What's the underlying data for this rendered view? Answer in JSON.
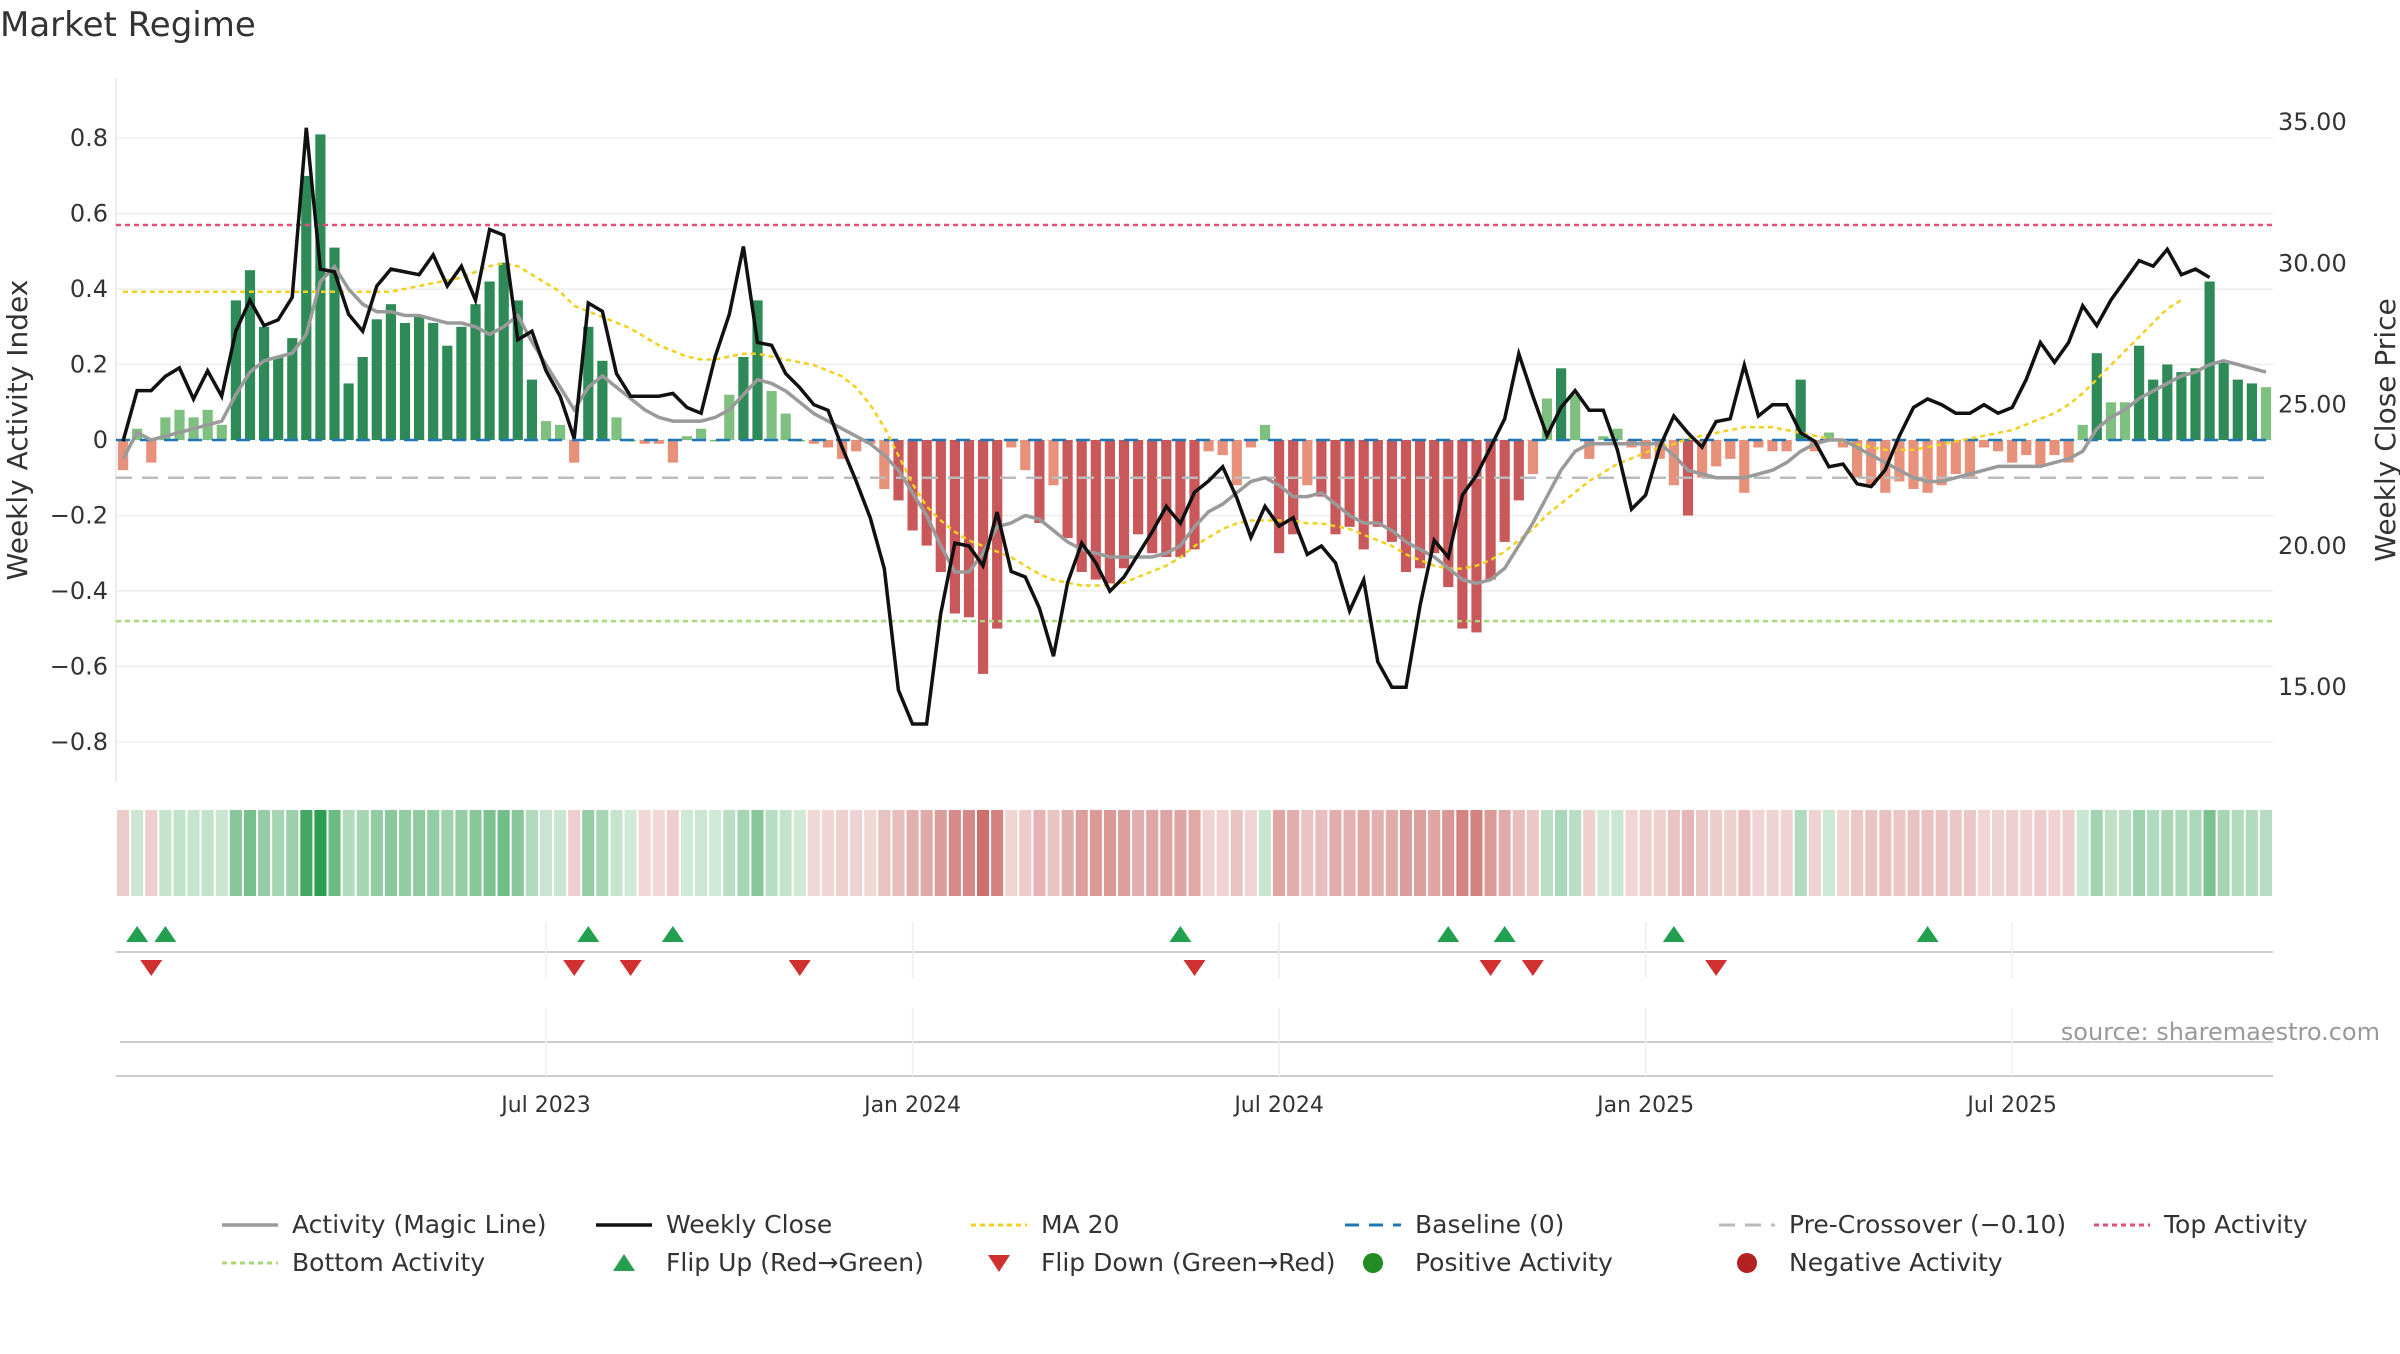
{
  "chart_data": {
    "type": "bar",
    "title": "Market Regime",
    "ylabel": "Weekly Activity Index",
    "y2label": "Weekly Close Price",
    "source": "source: sharemaestro.com",
    "ylim": [
      -0.88,
      0.88
    ],
    "y2lim": [
      12.0,
      35.5
    ],
    "y_ticks": [
      0.8,
      0.6,
      0.4,
      0.2,
      0,
      -0.2,
      -0.4,
      -0.6,
      -0.8
    ],
    "y_tick_labels": [
      "0.8",
      "0.6",
      "0.4",
      "0.2",
      "0",
      "−0.2",
      "−0.4",
      "−0.6",
      "−0.8"
    ],
    "y2_ticks": [
      35,
      30,
      25,
      20,
      15
    ],
    "y2_tick_labels": [
      "35.00",
      "30.00",
      "25.00",
      "20.00",
      "15.00"
    ],
    "x_ticks": [
      {
        "week": 30,
        "label": "Jul 2023"
      },
      {
        "week": 56,
        "label": "Jan 2024"
      },
      {
        "week": 82,
        "label": "Jul 2024"
      },
      {
        "week": 108,
        "label": "Jan 2025"
      },
      {
        "week": 134,
        "label": "Jul 2025"
      }
    ],
    "grid": true,
    "legend_position": "bottom",
    "reference_lines": {
      "baseline": 0,
      "pre_crossover": -0.1,
      "top_activity": 0.57,
      "bottom_activity": -0.48
    },
    "colors": {
      "pos_strong": "#2e8b57",
      "pos_light": "#7ec07f",
      "neg_strong": "#c8585a",
      "neg_light": "#e8917a",
      "close": "#111111",
      "magic": "#9a9a9a",
      "ma20": "#f0d020",
      "baseline": "#1f77b4",
      "pre_crossover": "#bbbbbb",
      "top": "#e0507a",
      "bottom": "#a8d878",
      "flip_up": "#22a050",
      "flip_down": "#d03030",
      "positive": "#228b22",
      "negative": "#b22222"
    },
    "activity": [
      -0.08,
      0.03,
      -0.06,
      0.06,
      0.08,
      0.06,
      0.08,
      0.04,
      0.37,
      0.45,
      0.3,
      0.22,
      0.27,
      0.7,
      0.81,
      0.51,
      0.15,
      0.22,
      0.32,
      0.36,
      0.31,
      0.33,
      0.31,
      0.25,
      0.3,
      0.36,
      0.42,
      0.47,
      0.37,
      0.16,
      0.05,
      0.04,
      -0.06,
      0.3,
      0.21,
      0.06,
      0.0,
      -0.01,
      -0.01,
      -0.06,
      0.01,
      0.03,
      0.0,
      0.12,
      0.22,
      0.37,
      0.13,
      0.07,
      0.0,
      -0.01,
      -0.02,
      -0.05,
      -0.03,
      -0.01,
      -0.13,
      -0.16,
      -0.24,
      -0.28,
      -0.35,
      -0.46,
      -0.47,
      -0.62,
      -0.5,
      -0.02,
      -0.08,
      -0.22,
      -0.12,
      -0.26,
      -0.35,
      -0.37,
      -0.38,
      -0.34,
      -0.25,
      -0.3,
      -0.31,
      -0.31,
      -0.29,
      -0.03,
      -0.04,
      -0.12,
      -0.02,
      0.04,
      -0.3,
      -0.25,
      -0.12,
      -0.15,
      -0.25,
      -0.23,
      -0.29,
      -0.23,
      -0.27,
      -0.35,
      -0.34,
      -0.3,
      -0.39,
      -0.5,
      -0.51,
      -0.37,
      -0.27,
      -0.16,
      -0.09,
      0.11,
      0.19,
      0.12,
      -0.05,
      0.01,
      0.03,
      -0.02,
      -0.05,
      -0.05,
      -0.12,
      -0.2,
      -0.1,
      -0.07,
      -0.05,
      -0.14,
      -0.02,
      -0.03,
      -0.03,
      0.16,
      -0.03,
      0.02,
      -0.02,
      -0.1,
      -0.12,
      -0.14,
      -0.11,
      -0.13,
      -0.14,
      -0.12,
      -0.09,
      -0.1,
      -0.02,
      -0.03,
      -0.06,
      -0.04,
      -0.07,
      -0.04,
      -0.06,
      0.04,
      0.23,
      0.1,
      0.1,
      0.25,
      0.16,
      0.2,
      0.18,
      0.19,
      0.42,
      0.21,
      0.16,
      0.15,
      0.14
    ],
    "magic_line": [
      -0.05,
      0.02,
      0.0,
      0.01,
      0.02,
      0.03,
      0.04,
      0.05,
      0.12,
      0.18,
      0.21,
      0.22,
      0.23,
      0.28,
      0.42,
      0.46,
      0.4,
      0.36,
      0.34,
      0.34,
      0.33,
      0.33,
      0.32,
      0.31,
      0.31,
      0.3,
      0.28,
      0.3,
      0.33,
      0.26,
      0.2,
      0.14,
      0.08,
      0.14,
      0.17,
      0.14,
      0.11,
      0.08,
      0.06,
      0.05,
      0.05,
      0.05,
      0.06,
      0.08,
      0.12,
      0.16,
      0.15,
      0.13,
      0.1,
      0.07,
      0.05,
      0.03,
      0.01,
      -0.01,
      -0.04,
      -0.08,
      -0.14,
      -0.2,
      -0.28,
      -0.35,
      -0.35,
      -0.3,
      -0.23,
      -0.22,
      -0.2,
      -0.21,
      -0.24,
      -0.27,
      -0.29,
      -0.3,
      -0.31,
      -0.31,
      -0.31,
      -0.31,
      -0.3,
      -0.28,
      -0.23,
      -0.19,
      -0.17,
      -0.14,
      -0.11,
      -0.1,
      -0.12,
      -0.15,
      -0.15,
      -0.14,
      -0.17,
      -0.2,
      -0.22,
      -0.22,
      -0.24,
      -0.27,
      -0.29,
      -0.31,
      -0.34,
      -0.37,
      -0.38,
      -0.37,
      -0.34,
      -0.28,
      -0.22,
      -0.15,
      -0.08,
      -0.03,
      -0.01,
      -0.01,
      -0.01,
      -0.01,
      -0.01,
      -0.01,
      -0.04,
      -0.08,
      -0.09,
      -0.1,
      -0.1,
      -0.1,
      -0.09,
      -0.08,
      -0.06,
      -0.03,
      -0.01,
      0.0,
      0.0,
      -0.02,
      -0.04,
      -0.06,
      -0.08,
      -0.1,
      -0.11,
      -0.11,
      -0.1,
      -0.09,
      -0.08,
      -0.07,
      -0.07,
      -0.07,
      -0.07,
      -0.06,
      -0.05,
      -0.03,
      0.03,
      0.06,
      0.08,
      0.11,
      0.13,
      0.15,
      0.17,
      0.18,
      0.2,
      0.21,
      0.2,
      0.19,
      0.18
    ],
    "close": [
      23.7,
      25.5,
      25.5,
      26.0,
      26.3,
      25.2,
      26.2,
      25.3,
      27.6,
      28.7,
      27.8,
      28.0,
      28.8,
      34.8,
      29.8,
      29.7,
      28.2,
      27.6,
      29.2,
      29.8,
      29.7,
      29.6,
      30.3,
      29.2,
      29.9,
      28.7,
      31.2,
      31.0,
      27.3,
      27.6,
      26.2,
      25.3,
      23.8,
      28.6,
      28.3,
      26.1,
      25.3,
      25.3,
      25.3,
      25.4,
      24.9,
      24.7,
      26.7,
      28.2,
      30.6,
      27.2,
      27.1,
      26.1,
      25.6,
      25.0,
      24.8,
      23.5,
      22.3,
      21.0,
      19.2,
      14.9,
      13.7,
      13.7,
      17.6,
      20.1,
      20.0,
      19.3,
      21.2,
      19.1,
      18.9,
      17.8,
      16.1,
      18.7,
      20.1,
      19.4,
      18.4,
      18.9,
      19.7,
      20.5,
      21.4,
      20.8,
      21.9,
      22.3,
      22.8,
      21.7,
      20.3,
      21.4,
      20.7,
      21.0,
      19.7,
      20.0,
      19.4,
      17.7,
      18.8,
      15.9,
      15.0,
      15.0,
      17.9,
      20.2,
      19.6,
      21.8,
      22.5,
      23.5,
      24.5,
      26.8,
      25.3,
      23.9,
      24.9,
      25.5,
      24.8,
      24.8,
      23.4,
      21.3,
      21.8,
      23.5,
      24.6,
      24.0,
      23.5,
      24.4,
      24.5,
      26.4,
      24.6,
      25.0,
      25.0,
      24.0,
      23.7,
      22.8,
      22.9,
      22.2,
      22.1,
      22.7,
      23.9,
      24.9,
      25.2,
      25.0,
      24.7,
      24.7,
      25.0,
      24.7,
      24.9,
      25.9,
      27.2,
      26.5,
      27.2,
      28.5,
      27.8,
      28.7,
      29.4,
      30.1,
      29.9,
      30.5,
      29.6,
      29.8,
      29.5
    ],
    "ma20": [
      29.0,
      29.0,
      29.0,
      29.0,
      29.0,
      29.0,
      29.0,
      29.0,
      29.0,
      29.0,
      29.0,
      29.0,
      29.0,
      29.0,
      29.0,
      29.0,
      29.0,
      29.0,
      29.0,
      29.0,
      29.1,
      29.2,
      29.3,
      29.4,
      29.5,
      29.7,
      29.9,
      30.0,
      29.9,
      29.6,
      29.3,
      29.0,
      28.5,
      28.3,
      28.1,
      27.9,
      27.7,
      27.4,
      27.1,
      26.9,
      26.7,
      26.6,
      26.6,
      26.7,
      26.8,
      26.8,
      26.7,
      26.6,
      26.5,
      26.4,
      26.2,
      26.0,
      25.6,
      25.0,
      24.2,
      23.2,
      22.2,
      21.4,
      20.9,
      20.5,
      20.2,
      20.0,
      19.8,
      19.6,
      19.3,
      19.0,
      18.8,
      18.7,
      18.6,
      18.6,
      18.6,
      18.7,
      18.9,
      19.1,
      19.3,
      19.6,
      20.0,
      20.3,
      20.6,
      20.8,
      20.9,
      20.9,
      20.9,
      20.9,
      20.8,
      20.8,
      20.7,
      20.6,
      20.4,
      20.2,
      20.0,
      19.7,
      19.5,
      19.3,
      19.2,
      19.2,
      19.3,
      19.5,
      19.8,
      20.2,
      20.6,
      21.1,
      21.5,
      21.9,
      22.3,
      22.6,
      22.9,
      23.1,
      23.3,
      23.5,
      23.6,
      23.8,
      23.9,
      24.0,
      24.1,
      24.2,
      24.2,
      24.2,
      24.1,
      24.0,
      23.9,
      23.8,
      23.7,
      23.6,
      23.5,
      23.4,
      23.4,
      23.4,
      23.5,
      23.6,
      23.7,
      23.8,
      23.9,
      24.0,
      24.1,
      24.3,
      24.5,
      24.7,
      25.0,
      25.4,
      25.9,
      26.4,
      26.9,
      27.4,
      27.9,
      28.4,
      28.7
    ],
    "flip_up_weeks": [
      1,
      3,
      33,
      39,
      75,
      94,
      98,
      110,
      128
    ],
    "flip_down_weeks": [
      2,
      32,
      36,
      48,
      76,
      97,
      100,
      113
    ],
    "legend": [
      {
        "key": "magic",
        "label": "Activity (Magic Line)"
      },
      {
        "key": "close",
        "label": "Weekly Close"
      },
      {
        "key": "ma20",
        "label": "MA 20"
      },
      {
        "key": "baseline",
        "label": "Baseline (0)"
      },
      {
        "key": "pre_crossover",
        "label": "Pre-Crossover (−0.10)"
      },
      {
        "key": "top",
        "label": "Top Activity"
      },
      {
        "key": "bottom",
        "label": "Bottom Activity"
      },
      {
        "key": "flip_up",
        "label": "Flip Up (Red→Green)"
      },
      {
        "key": "flip_down",
        "label": "Flip Down (Green→Red)"
      },
      {
        "key": "positive",
        "label": "Positive Activity"
      },
      {
        "key": "negative",
        "label": "Negative Activity"
      }
    ]
  }
}
